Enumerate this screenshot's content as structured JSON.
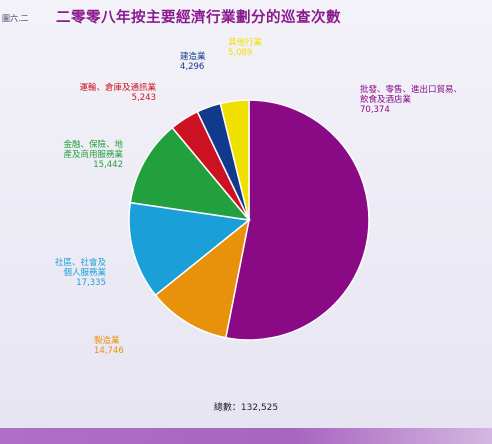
{
  "figure_label": "圖六.二",
  "chart_data": {
    "type": "pie",
    "title": "二零零八年按主要經濟行業劃分的巡查次數",
    "total_label": "總數",
    "total_value": "132,525",
    "slices": [
      {
        "lines": [
          "批發、零售、進出口貿易、",
          "飲食及酒店業"
        ],
        "value_text": "70,374",
        "value": 70374,
        "color": "#8a0a85"
      },
      {
        "lines": [
          "製造業"
        ],
        "value_text": "14,746",
        "value": 14746,
        "color": "#e8910a"
      },
      {
        "lines": [
          "社區、社會及",
          "個人服務業"
        ],
        "value_text": "17,335",
        "value": 17335,
        "color": "#1a9fd9"
      },
      {
        "lines": [
          "金融、保險、地",
          "產及商用服務業"
        ],
        "value_text": "15,442",
        "value": 15442,
        "color": "#23a03e"
      },
      {
        "lines": [
          "運輸、倉庫及通訊業"
        ],
        "value_text": "5,243",
        "value": 5243,
        "color": "#cc1222"
      },
      {
        "lines": [
          "建造業"
        ],
        "value_text": "4,296",
        "value": 4296,
        "color": "#123a8c"
      },
      {
        "lines": [
          "其他行業"
        ],
        "value_text": "5,089",
        "value": 5089,
        "color": "#f0e000"
      }
    ]
  }
}
